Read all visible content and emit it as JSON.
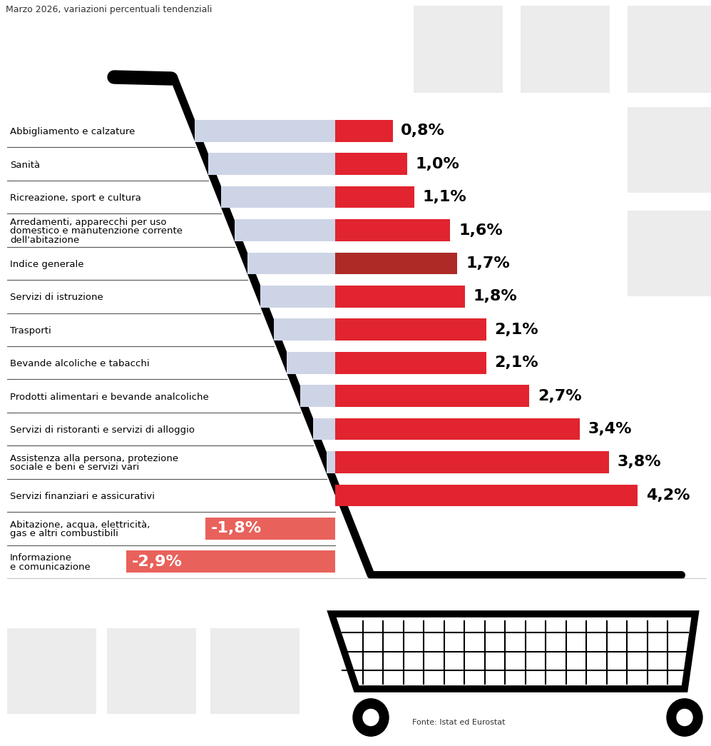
{
  "chart_data": {
    "type": "bar",
    "orientation": "horizontal",
    "subtitle": "Marzo 2026, variazioni percentuali tendenziali",
    "source": "Fonte: Istat ed Eurostat",
    "categories": [
      "Abbigliamento e calzature",
      "Sanità",
      "Ricreazione, sport e cultura",
      "Arredamenti, apparecchi per uso\ndomestico e manutenzione corrente\ndell'abitazione",
      "Indice generale",
      "Servizi di istruzione",
      "Trasporti",
      "Bevande alcoliche e tabacchi",
      "Prodotti alimentari e bevande analcoliche",
      "Servizi di ristoranti e servizi di alloggio",
      "Assistenza alla persona, protezione\nsociale e beni e servizi vari",
      "Servizi finanziari e assicurativi",
      "Abitazione, acqua, elettricità,\ngas e altri combustibili",
      "Informazione\ne comunicazione"
    ],
    "values": [
      0.8,
      1.0,
      1.1,
      1.6,
      1.7,
      1.8,
      2.1,
      2.1,
      2.7,
      3.4,
      3.8,
      4.2,
      -1.8,
      -2.9
    ],
    "value_labels": [
      "0,8%",
      "1,0%",
      "1,1%",
      "1,6%",
      "1,7%",
      "1,8%",
      "2,1%",
      "2,1%",
      "2,7%",
      "3,4%",
      "3,8%",
      "4,2%",
      "-1,8%",
      "-2,9%"
    ],
    "colors": [
      "#e1242f",
      "#e1242f",
      "#e1242f",
      "#e1242f",
      "#ad2a26",
      "#e1242f",
      "#e1242f",
      "#e1242f",
      "#e1242f",
      "#e1242f",
      "#e1242f",
      "#e1242f",
      "#e8625b",
      "#e8625b"
    ],
    "xlim": [
      -4.55,
      5.15
    ],
    "data_labels": true,
    "tick_labels": "y"
  }
}
